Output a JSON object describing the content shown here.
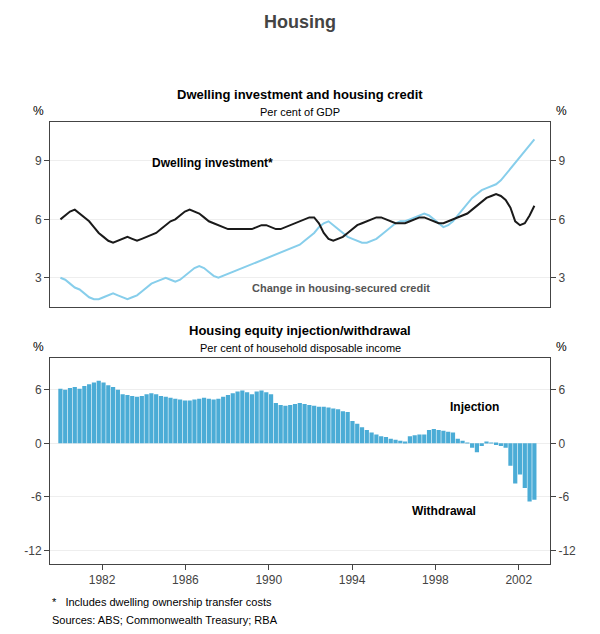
{
  "title": "Housing",
  "annotations": [
    "*   Includes dwelling ownership transfer costs",
    "Sources: ABS; Commonwealth Treasury; RBA"
  ],
  "chart_data": [
    {
      "type": "line",
      "title": "Dwelling investment and housing credit",
      "subtitle": "Per cent of GDP",
      "ylabel": "%",
      "y2label": "%",
      "x": [
        1980,
        1980.2298,
        1980.4596,
        1980.6894,
        1980.9192,
        1981.149,
        1981.3788,
        1981.6086,
        1981.8384,
        1982.0682,
        1982.298,
        1982.5278,
        1982.7576,
        1982.9874,
        1983.2172,
        1983.447,
        1983.6768,
        1983.9066,
        1984.1364,
        1984.3662,
        1984.596,
        1984.8258,
        1985.0556,
        1985.2854,
        1985.5152,
        1985.7449,
        1985.9747,
        1986.2045,
        1986.4343,
        1986.6641,
        1986.8939,
        1987.1237,
        1987.3535,
        1987.5833,
        1987.8131,
        1988.0429,
        1988.2727,
        1988.5025,
        1988.7323,
        1988.9621,
        1989.1919,
        1989.4217,
        1989.6515,
        1989.8813,
        1990.1111,
        1990.3409,
        1990.5707,
        1990.8005,
        1991.0303,
        1991.2601,
        1991.4899,
        1991.7197,
        1991.9495,
        1992.1793,
        1992.4091,
        1992.6389,
        1992.8687,
        1993.0985,
        1993.3283,
        1993.5581,
        1993.7879,
        1994.0177,
        1994.2475,
        1994.4773,
        1994.7071,
        1994.9369,
        1995.1667,
        1995.3965,
        1995.6263,
        1995.8561,
        1996.0859,
        1996.3157,
        1996.5455,
        1996.7753,
        1997.0051,
        1997.2348,
        1997.4646,
        1997.6944,
        1997.9242,
        1998.154,
        1998.3838,
        1998.6136,
        1998.8434,
        1999.0732,
        1999.303,
        1999.5328,
        1999.7626,
        1999.9924,
        2000.2222,
        2000.452,
        2000.6818,
        2000.9116,
        2001.1414,
        2001.3712,
        2001.601,
        2001.8308,
        2002.0606,
        2002.2904,
        2002.5202,
        2002.75
      ],
      "series": [
        {
          "color": "#87ceeb",
          "values": [
            3.0,
            2.9,
            2.7,
            2.5,
            2.4,
            2.2,
            2.0,
            1.9,
            1.9,
            2.0,
            2.1,
            2.2,
            2.1,
            2.0,
            1.9,
            2.0,
            2.1,
            2.3,
            2.5,
            2.7,
            2.8,
            2.9,
            3.0,
            2.9,
            2.8,
            2.9,
            3.1,
            3.3,
            3.5,
            3.6,
            3.5,
            3.3,
            3.1,
            3.0,
            3.1,
            3.2,
            3.3,
            3.4,
            3.5,
            3.6,
            3.7,
            3.8,
            3.9,
            4.0,
            4.1,
            4.2,
            4.3,
            4.4,
            4.5,
            4.6,
            4.7,
            4.9,
            5.1,
            5.3,
            5.6,
            5.8,
            5.9,
            5.7,
            5.5,
            5.3,
            5.1,
            5.0,
            4.9,
            4.8,
            4.8,
            4.9,
            5.0,
            5.2,
            5.4,
            5.6,
            5.8,
            5.9,
            5.9,
            6.0,
            6.1,
            6.2,
            6.3,
            6.2,
            6.0,
            5.8,
            5.6,
            5.7,
            5.9,
            6.2,
            6.5,
            6.8,
            7.1,
            7.3,
            7.5,
            7.6,
            7.7,
            7.8,
            8.0,
            8.3,
            8.6,
            8.9,
            9.2,
            9.5,
            9.8,
            10.1
          ]
        },
        {
          "color": "#1a1a1a",
          "values": [
            6.0,
            6.2,
            6.4,
            6.5,
            6.3,
            6.1,
            5.9,
            5.6,
            5.3,
            5.1,
            4.9,
            4.8,
            4.9,
            5.0,
            5.1,
            5.0,
            4.9,
            5.0,
            5.1,
            5.2,
            5.3,
            5.5,
            5.7,
            5.9,
            6.0,
            6.2,
            6.4,
            6.5,
            6.4,
            6.3,
            6.1,
            5.9,
            5.8,
            5.7,
            5.6,
            5.5,
            5.5,
            5.5,
            5.5,
            5.5,
            5.5,
            5.6,
            5.7,
            5.7,
            5.6,
            5.5,
            5.5,
            5.6,
            5.7,
            5.8,
            5.9,
            6.0,
            6.1,
            6.1,
            5.8,
            5.3,
            5.0,
            4.9,
            5.0,
            5.1,
            5.3,
            5.5,
            5.7,
            5.8,
            5.9,
            6.0,
            6.1,
            6.1,
            6.0,
            5.9,
            5.8,
            5.8,
            5.8,
            5.9,
            6.0,
            6.1,
            6.1,
            6.0,
            5.9,
            5.8,
            5.8,
            5.9,
            6.0,
            6.1,
            6.2,
            6.3,
            6.5,
            6.7,
            6.9,
            7.1,
            7.2,
            7.3,
            7.2,
            7.0,
            6.6,
            5.9,
            5.7,
            5.8,
            6.2,
            6.7
          ]
        }
      ],
      "annotations": [
        "Dwelling investment*",
        "Change in housing-secured credit"
      ],
      "xlim": [
        1979.5,
        2003.5
      ],
      "ylim": [
        1.5,
        11.0
      ],
      "yticks": [
        3,
        6,
        9
      ],
      "y2lim": [
        1.5,
        11.0
      ],
      "y2ticks": [
        3,
        6,
        9
      ],
      "grid": true,
      "tick_labels": "y"
    },
    {
      "type": "bar",
      "title": "Housing equity injection/withdrawal",
      "subtitle": "Per cent of household disposable income",
      "ylabel": "%",
      "y2label": "%",
      "x": [
        1980,
        1980.2298,
        1980.4596,
        1980.6894,
        1980.9192,
        1981.149,
        1981.3788,
        1981.6086,
        1981.8384,
        1982.0682,
        1982.298,
        1982.5278,
        1982.7576,
        1982.9874,
        1983.2172,
        1983.447,
        1983.6768,
        1983.9066,
        1984.1364,
        1984.3662,
        1984.596,
        1984.8258,
        1985.0556,
        1985.2854,
        1985.5152,
        1985.7449,
        1985.9747,
        1986.2045,
        1986.4343,
        1986.6641,
        1986.8939,
        1987.1237,
        1987.3535,
        1987.5833,
        1987.8131,
        1988.0429,
        1988.2727,
        1988.5025,
        1988.7323,
        1988.9621,
        1989.1919,
        1989.4217,
        1989.6515,
        1989.8813,
        1990.1111,
        1990.3409,
        1990.5707,
        1990.8005,
        1991.0303,
        1991.2601,
        1991.4899,
        1991.7197,
        1991.9495,
        1992.1793,
        1992.4091,
        1992.6389,
        1992.8687,
        1993.0985,
        1993.3283,
        1993.5581,
        1993.7879,
        1994.0177,
        1994.2475,
        1994.4773,
        1994.7071,
        1994.9369,
        1995.1667,
        1995.3965,
        1995.6263,
        1995.8561,
        1996.0859,
        1996.3157,
        1996.5455,
        1996.7753,
        1997.0051,
        1997.2348,
        1997.4646,
        1997.6944,
        1997.9242,
        1998.154,
        1998.3838,
        1998.6136,
        1998.8434,
        1999.0732,
        1999.303,
        1999.5328,
        1999.7626,
        1999.9924,
        2000.2222,
        2000.452,
        2000.6818,
        2000.9116,
        2001.1414,
        2001.3712,
        2001.601,
        2001.8308,
        2002.0606,
        2002.2904,
        2002.5202,
        2002.75
      ],
      "values": [
        6.1,
        6.0,
        6.2,
        6.3,
        6.1,
        6.4,
        6.6,
        6.8,
        7.0,
        6.8,
        6.5,
        6.3,
        6.0,
        5.5,
        5.4,
        5.3,
        5.2,
        5.3,
        5.5,
        5.6,
        5.5,
        5.3,
        5.2,
        5.1,
        5.0,
        4.9,
        4.8,
        4.8,
        4.9,
        5.0,
        5.1,
        5.0,
        4.9,
        5.0,
        5.2,
        5.4,
        5.6,
        5.8,
        5.9,
        5.7,
        5.5,
        5.8,
        5.9,
        5.7,
        5.5,
        4.5,
        4.3,
        4.2,
        4.3,
        4.4,
        4.5,
        4.4,
        4.3,
        4.2,
        4.1,
        4.1,
        4.0,
        3.9,
        3.8,
        3.6,
        3.5,
        2.5,
        2.2,
        1.8,
        1.5,
        1.2,
        1.0,
        0.8,
        0.7,
        0.5,
        0.4,
        0.3,
        0.2,
        0.8,
        0.9,
        1.0,
        1.0,
        1.5,
        1.6,
        1.5,
        1.4,
        1.3,
        1.2,
        0.5,
        0.3,
        0.1,
        -0.5,
        -1.0,
        -0.3,
        0.2,
        0.1,
        -0.2,
        -0.3,
        -0.5,
        -2.5,
        -4.5,
        -3.5,
        -5.0,
        -6.5,
        -6.3
      ],
      "color": "#4bacd6",
      "annotations": [
        "Injection",
        "Withdrawal"
      ],
      "xlim": [
        1979.5,
        2003.5
      ],
      "xticks": [
        1982,
        1986,
        1990,
        1994,
        1998,
        2002
      ],
      "ylim": [
        -13.5,
        9.5
      ],
      "yticks": [
        -12,
        -6,
        0,
        6
      ],
      "y2lim": [
        -13.5,
        9.5
      ],
      "y2ticks": [
        -12,
        -6,
        0,
        6
      ],
      "grid": true
    }
  ]
}
